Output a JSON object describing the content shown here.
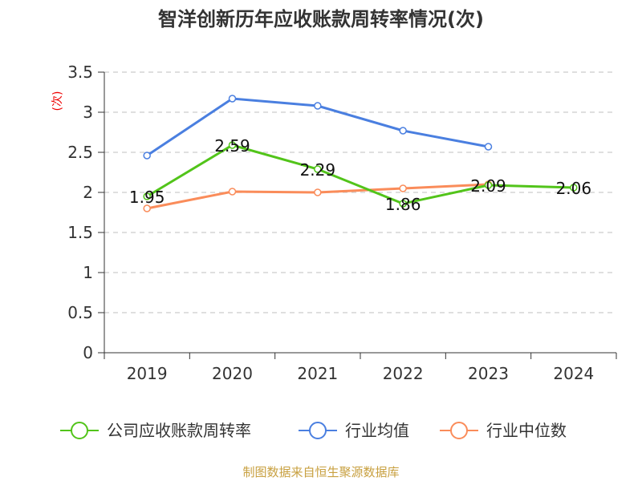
{
  "chart_data": {
    "type": "line",
    "title": "智洋创新历年应收账款周转率情况(次)",
    "ylabel": "(次)",
    "xlabel": "",
    "categories": [
      "2019",
      "2020",
      "2021",
      "2022",
      "2023",
      "2024"
    ],
    "ylim": [
      0,
      3.5
    ],
    "yticks": [
      "0",
      "0.5",
      "1",
      "1.5",
      "2",
      "2.5",
      "3",
      "3.5"
    ],
    "grid": true,
    "legend_position": "bottom",
    "series": [
      {
        "name": "公司应收账款周转率",
        "color": "#52c41a",
        "values": [
          1.95,
          2.59,
          2.29,
          1.86,
          2.09,
          2.06
        ],
        "labels": [
          "1.95",
          "2.59",
          "2.29",
          "1.86",
          "2.09",
          "2.06"
        ]
      },
      {
        "name": "行业均值",
        "color": "#4a7fe0",
        "values": [
          2.46,
          3.17,
          3.08,
          2.77,
          2.57,
          null
        ]
      },
      {
        "name": "行业中位数",
        "color": "#fa8c5a",
        "values": [
          1.8,
          2.01,
          2.0,
          2.05,
          2.1,
          null
        ]
      }
    ],
    "source": "制图数据来自恒生聚源数据库"
  }
}
